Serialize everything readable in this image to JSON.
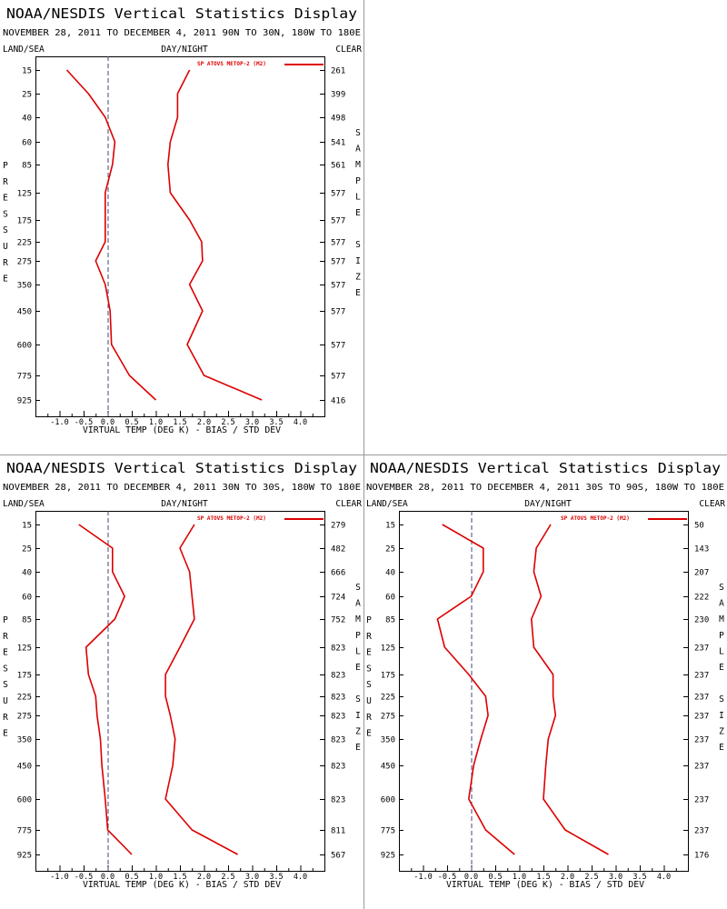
{
  "chart_data": [
    {
      "type": "line",
      "title": "NOAA/NESDIS Vertical Statistics Display",
      "subtitle": "NOVEMBER 28, 2011 TO DECEMBER 4, 2011 90N TO 30N, 180W TO 180E",
      "header_left": "LAND/SEA",
      "header_center": "DAY/NIGHT",
      "header_right": "CLEAR",
      "xlabel": "VIRTUAL TEMP (DEG K) - BIAS / STD DEV",
      "ylabel": "PRESSURE",
      "y2label": "SAMPLE SIZE",
      "xlim": [
        -1.5,
        4.5
      ],
      "xticks": [
        "-1.0",
        "-0.5",
        "0.0",
        "0.5",
        "1.0",
        "1.5",
        "2.0",
        "2.5",
        "3.0",
        "3.5",
        "4.0"
      ],
      "pressure_levels": [
        "15",
        "25",
        "40",
        "60",
        "85",
        "125",
        "175",
        "225",
        "275",
        "350",
        "450",
        "600",
        "775",
        "925"
      ],
      "sample_sizes": [
        "261",
        "399",
        "498",
        "541",
        "561",
        "577",
        "577",
        "577",
        "577",
        "577",
        "577",
        "577",
        "577",
        "416"
      ],
      "legend": "SP ATOVS METOP-2 (M2)",
      "legend_position": "top-right",
      "line_color": "#dd0000",
      "series": [
        {
          "values": [
            -0.85,
            -0.4,
            -0.05,
            0.15,
            0.1,
            -0.05,
            -0.05,
            -0.05,
            -0.25,
            -0.05,
            0.05,
            0.08,
            0.45,
            1.0
          ]
        },
        {
          "values": [
            1.7,
            1.45,
            1.45,
            1.3,
            1.25,
            1.3,
            1.7,
            1.95,
            1.97,
            1.7,
            1.97,
            1.65,
            2.0,
            3.2
          ]
        }
      ]
    },
    {
      "type": "line",
      "title": "NOAA/NESDIS Vertical Statistics Display",
      "subtitle": "NOVEMBER 28, 2011 TO DECEMBER 4, 2011 30N TO 30S, 180W TO 180E",
      "header_left": "LAND/SEA",
      "header_center": "DAY/NIGHT",
      "header_right": "CLEAR",
      "xlabel": "VIRTUAL TEMP (DEG K) - BIAS / STD DEV",
      "ylabel": "PRESSURE",
      "y2label": "SAMPLE SIZE",
      "xlim": [
        -1.5,
        4.5
      ],
      "xticks": [
        "-1.0",
        "-0.5",
        "0.0",
        "0.5",
        "1.0",
        "1.5",
        "2.0",
        "2.5",
        "3.0",
        "3.5",
        "4.0"
      ],
      "pressure_levels": [
        "15",
        "25",
        "40",
        "60",
        "85",
        "125",
        "175",
        "225",
        "275",
        "350",
        "450",
        "600",
        "775",
        "925"
      ],
      "sample_sizes": [
        "279",
        "482",
        "666",
        "724",
        "752",
        "823",
        "823",
        "823",
        "823",
        "823",
        "823",
        "823",
        "811",
        "567"
      ],
      "legend": "SP ATOVS METOP-2 (M2)",
      "legend_position": "top-right",
      "line_color": "#dd0000",
      "series": [
        {
          "values": [
            -0.6,
            0.1,
            0.1,
            0.35,
            0.15,
            -0.45,
            -0.4,
            -0.25,
            -0.22,
            -0.15,
            -0.12,
            -0.05,
            0.0,
            0.5
          ]
        },
        {
          "values": [
            1.8,
            1.5,
            1.7,
            1.75,
            1.8,
            1.5,
            1.2,
            1.2,
            1.3,
            1.4,
            1.35,
            1.2,
            1.75,
            2.7
          ]
        }
      ]
    },
    {
      "type": "line",
      "title": "NOAA/NESDIS Vertical Statistics Display",
      "subtitle": "NOVEMBER 28, 2011 TO DECEMBER 4, 2011 30S TO 90S, 180W TO 180E",
      "header_left": "LAND/SEA",
      "header_center": "DAY/NIGHT",
      "header_right": "CLEAR",
      "xlabel": "VIRTUAL TEMP (DEG K) - BIAS / STD DEV",
      "ylabel": "PRESSURE",
      "y2label": "SAMPLE SIZE",
      "xlim": [
        -1.5,
        4.5
      ],
      "xticks": [
        "-1.0",
        "-0.5",
        "0.0",
        "0.5",
        "1.0",
        "1.5",
        "2.0",
        "2.5",
        "3.0",
        "3.5",
        "4.0"
      ],
      "pressure_levels": [
        "15",
        "25",
        "40",
        "60",
        "85",
        "125",
        "175",
        "225",
        "275",
        "350",
        "450",
        "600",
        "775",
        "925"
      ],
      "sample_sizes": [
        "50",
        "143",
        "207",
        "222",
        "230",
        "237",
        "237",
        "237",
        "237",
        "237",
        "237",
        "237",
        "237",
        "176"
      ],
      "legend": "SP ATOVS METOP-2 (M2)",
      "legend_position": "top-right",
      "line_color": "#dd0000",
      "series": [
        {
          "values": [
            -0.6,
            0.25,
            0.25,
            0.0,
            -0.7,
            -0.55,
            -0.05,
            0.3,
            0.35,
            0.2,
            0.05,
            -0.05,
            0.3,
            0.9
          ]
        },
        {
          "values": [
            1.65,
            1.35,
            1.3,
            1.45,
            1.25,
            1.3,
            1.7,
            1.7,
            1.75,
            1.6,
            1.55,
            1.5,
            1.95,
            2.85
          ]
        }
      ]
    }
  ]
}
